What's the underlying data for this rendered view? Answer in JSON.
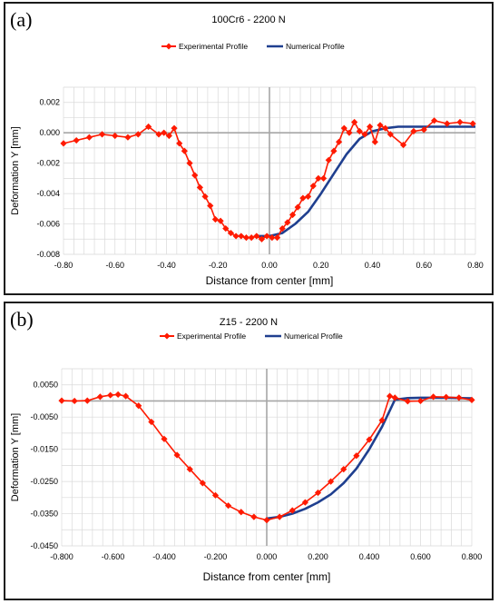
{
  "panels": [
    {
      "letter": "(a)"
    },
    {
      "letter": "(b)"
    }
  ],
  "colors": {
    "experimental": "#ff1a00",
    "numerical": "#1f3f8f",
    "grid": "#d9d9d9",
    "zero_axis": "#a6a6a6"
  },
  "chart_data": [
    {
      "type": "line",
      "title": "100Cr6 - 2200 N",
      "xlabel": "Distance from center [mm]",
      "ylabel": "Deformation Y [mm]",
      "xlim": [
        -0.8,
        0.8
      ],
      "ylim": [
        -0.008,
        0.003
      ],
      "xticks": [
        "-0.80",
        "-0.60",
        "-0.40",
        "-0.20",
        "0.00",
        "0.20",
        "0.40",
        "0.60",
        "0.80"
      ],
      "xtick_values": [
        -0.8,
        -0.6,
        -0.4,
        -0.2,
        0.0,
        0.2,
        0.4,
        0.6,
        0.8
      ],
      "yticks": [
        "0.002",
        "0.000",
        "-0.002",
        "-0.004",
        "-0.006",
        "-0.008"
      ],
      "ytick_values": [
        0.002,
        0.0,
        -0.002,
        -0.004,
        -0.006,
        -0.008
      ],
      "grid": true,
      "legend_position": "top",
      "series": [
        {
          "name": "Experimental Profile",
          "marker": "diamond",
          "x": [
            -0.8,
            -0.75,
            -0.7,
            -0.65,
            -0.6,
            -0.55,
            -0.51,
            -0.47,
            -0.43,
            -0.41,
            -0.39,
            -0.37,
            -0.35,
            -0.33,
            -0.31,
            -0.29,
            -0.27,
            -0.25,
            -0.23,
            -0.21,
            -0.19,
            -0.17,
            -0.15,
            -0.13,
            -0.11,
            -0.09,
            -0.07,
            -0.05,
            -0.03,
            -0.01,
            0.01,
            0.03,
            0.05,
            0.07,
            0.09,
            0.11,
            0.13,
            0.15,
            0.17,
            0.19,
            0.21,
            0.23,
            0.25,
            0.27,
            0.29,
            0.31,
            0.33,
            0.35,
            0.37,
            0.39,
            0.41,
            0.43,
            0.45,
            0.47,
            0.52,
            0.56,
            0.6,
            0.64,
            0.69,
            0.74,
            0.79
          ],
          "y": [
            -0.0007,
            -0.0005,
            -0.0003,
            -0.0001,
            -0.0002,
            -0.0003,
            -0.0001,
            0.0004,
            -0.0001,
            0.0,
            -0.0002,
            0.0003,
            -0.0007,
            -0.0012,
            -0.002,
            -0.0028,
            -0.0036,
            -0.0042,
            -0.0048,
            -0.0057,
            -0.0058,
            -0.0063,
            -0.0066,
            -0.0068,
            -0.0068,
            -0.0069,
            -0.0069,
            -0.0068,
            -0.007,
            -0.0068,
            -0.0069,
            -0.0069,
            -0.0063,
            -0.0059,
            -0.0054,
            -0.0049,
            -0.0043,
            -0.0042,
            -0.0035,
            -0.003,
            -0.003,
            -0.0018,
            -0.0012,
            -0.0006,
            0.0003,
            0.0,
            0.0007,
            0.0001,
            -0.0001,
            0.0004,
            -0.0006,
            0.0005,
            0.0003,
            -0.0001,
            -0.0008,
            0.0001,
            0.0002,
            0.0008,
            0.0006,
            0.0007,
            0.0006
          ]
        },
        {
          "name": "Numerical Profile",
          "x": [
            -0.05,
            0.0,
            0.05,
            0.1,
            0.15,
            0.2,
            0.25,
            0.3,
            0.35,
            0.4,
            0.45,
            0.5,
            0.6,
            0.7,
            0.8
          ],
          "y": [
            -0.0068,
            -0.0068,
            -0.0066,
            -0.006,
            -0.0052,
            -0.004,
            -0.0027,
            -0.0014,
            -0.0004,
            0.0001,
            0.0003,
            0.0004,
            0.0004,
            0.0004,
            0.0004
          ]
        }
      ]
    },
    {
      "type": "line",
      "title": "Z15 - 2200 N",
      "xlabel": "Distance from center [mm]",
      "ylabel": "Deformation Y [mm]",
      "xlim": [
        -0.8,
        0.8
      ],
      "ylim": [
        -0.045,
        0.01
      ],
      "xticks": [
        "-0.800",
        "-0.600",
        "-0.400",
        "-0.200",
        "0.000",
        "0.200",
        "0.400",
        "0.600",
        "0.800"
      ],
      "xtick_values": [
        -0.8,
        -0.6,
        -0.4,
        -0.2,
        0.0,
        0.2,
        0.4,
        0.6,
        0.8
      ],
      "yticks": [
        "0.0050",
        "-0.0050",
        "-0.0150",
        "-0.0250",
        "-0.0350",
        "-0.0450"
      ],
      "ytick_values": [
        0.005,
        -0.005,
        -0.015,
        -0.025,
        -0.035,
        -0.045
      ],
      "grid": true,
      "legend_position": "top",
      "series": [
        {
          "name": "Experimental Profile",
          "marker": "diamond",
          "x": [
            -0.8,
            -0.75,
            -0.7,
            -0.65,
            -0.61,
            -0.58,
            -0.55,
            -0.5,
            -0.45,
            -0.4,
            -0.35,
            -0.3,
            -0.25,
            -0.2,
            -0.15,
            -0.1,
            -0.05,
            0.0,
            0.05,
            0.1,
            0.15,
            0.2,
            0.25,
            0.3,
            0.35,
            0.4,
            0.45,
            0.48,
            0.5,
            0.55,
            0.6,
            0.65,
            0.7,
            0.75,
            0.8
          ],
          "y": [
            0.0001,
            0.0,
            0.0001,
            0.0013,
            0.0018,
            0.002,
            0.0015,
            -0.0015,
            -0.0065,
            -0.0118,
            -0.0168,
            -0.0212,
            -0.0255,
            -0.0293,
            -0.0325,
            -0.0345,
            -0.036,
            -0.037,
            -0.036,
            -0.034,
            -0.0315,
            -0.0285,
            -0.025,
            -0.0212,
            -0.017,
            -0.012,
            -0.006,
            0.0015,
            0.001,
            -0.0001,
            0.0,
            0.0013,
            0.0012,
            0.001,
            0.0003
          ]
        },
        {
          "name": "Numerical Profile",
          "x": [
            0.0,
            0.05,
            0.1,
            0.15,
            0.2,
            0.25,
            0.3,
            0.35,
            0.4,
            0.45,
            0.48,
            0.5,
            0.55,
            0.6,
            0.7,
            0.8
          ],
          "y": [
            -0.0365,
            -0.036,
            -0.035,
            -0.0335,
            -0.0315,
            -0.029,
            -0.0255,
            -0.021,
            -0.015,
            -0.008,
            -0.003,
            0.0004,
            0.0009,
            0.001,
            0.001,
            0.0008
          ]
        }
      ]
    }
  ]
}
